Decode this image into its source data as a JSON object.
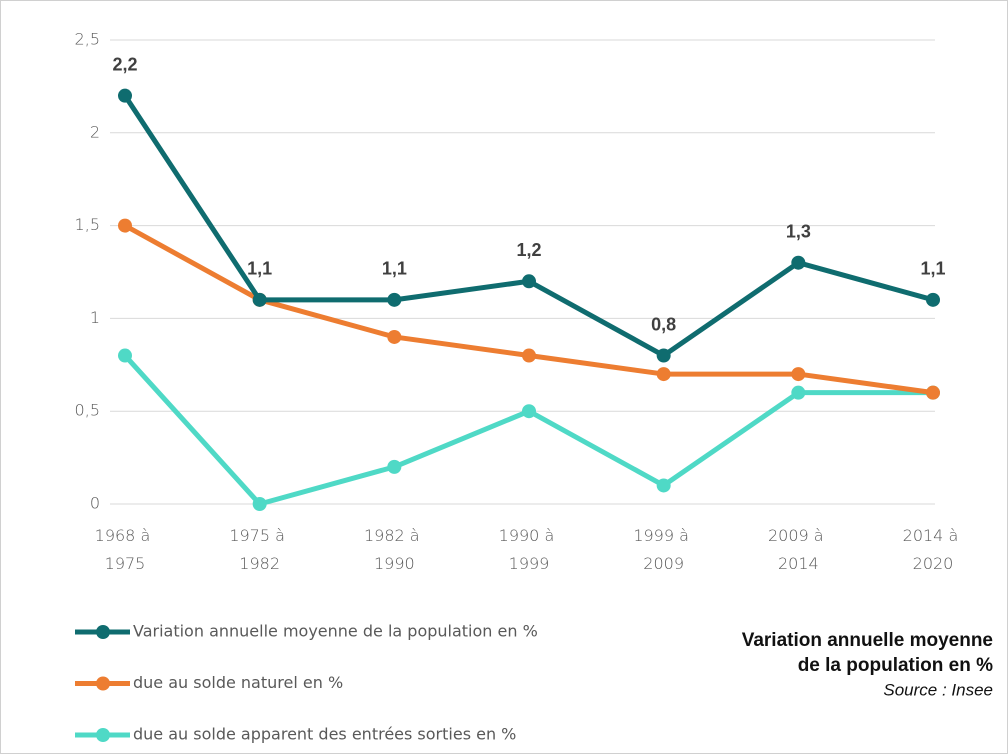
{
  "chart_data": {
    "type": "line",
    "title": [
      "Variation annuelle moyenne",
      "de la population en %"
    ],
    "source": "Source : Insee",
    "categories": [
      "1968 à 1975",
      "1975 à 1982",
      "1982 à 1990",
      "1990 à 1999",
      "1999 à 2009",
      "2009 à 2014",
      "2014 à 2020"
    ],
    "series": [
      {
        "name": "Variation annuelle moyenne de la population en %",
        "color": "#0f6c6f",
        "values": [
          2.2,
          1.1,
          1.1,
          1.2,
          0.8,
          1.3,
          1.1
        ],
        "value_labels": [
          "2,2",
          "1,1",
          "1,1",
          "1,2",
          "0,8",
          "1,3",
          "1,1"
        ]
      },
      {
        "name": "due au solde naturel en %",
        "color": "#ed7d31",
        "values": [
          1.5,
          1.1,
          0.9,
          0.8,
          0.7,
          0.7,
          0.6
        ]
      },
      {
        "name": "due au solde apparent des entrées sorties en %",
        "color": "#4fd9c6",
        "values": [
          0.8,
          0,
          0.2,
          0.5,
          0.1,
          0.6,
          0.6
        ]
      }
    ],
    "ylim": [
      0,
      2.5
    ],
    "yticks": [
      0,
      {
        "value": 0.5,
        "label": "0,5"
      },
      1,
      {
        "value": 1.5,
        "label": "1,5"
      },
      2,
      {
        "value": 2.5,
        "label": "2,5"
      }
    ],
    "grid": true
  }
}
